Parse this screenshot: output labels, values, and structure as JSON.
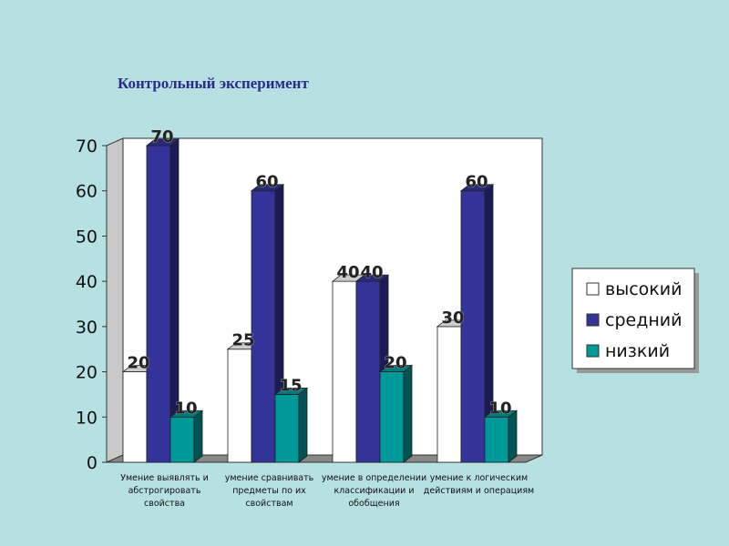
{
  "chart_data": {
    "type": "bar",
    "title": "Контрольный эксперимент",
    "categories": [
      "Умение выявлять и абстрогировать свойства",
      "умение сравнивать предметы по их свойствам",
      "умение в определении классификации и обобщения",
      "умение к логическим действиям и операциям"
    ],
    "category_lines": [
      [
        "Умение выявлять и",
        "абстрогировать",
        "свойства"
      ],
      [
        "умение сравнивать",
        "предметы по их",
        "свойствам"
      ],
      [
        "умение в определении",
        "классификации и",
        "обобщения"
      ],
      [
        "умение к логическим",
        "действиям и операциям"
      ]
    ],
    "series": [
      {
        "name": "высокий",
        "values": [
          20,
          25,
          40,
          30
        ],
        "color": "#ffffff"
      },
      {
        "name": "средний",
        "values": [
          70,
          60,
          40,
          60
        ],
        "color": "#333399"
      },
      {
        "name": "низкий",
        "values": [
          10,
          15,
          20,
          10
        ],
        "color": "#009999"
      }
    ],
    "ylim": [
      0,
      70
    ],
    "yticks": [
      0,
      10,
      20,
      30,
      40,
      50,
      60,
      70
    ],
    "grid": false,
    "legend_position": "right",
    "data_labels": true,
    "three_d": true
  }
}
